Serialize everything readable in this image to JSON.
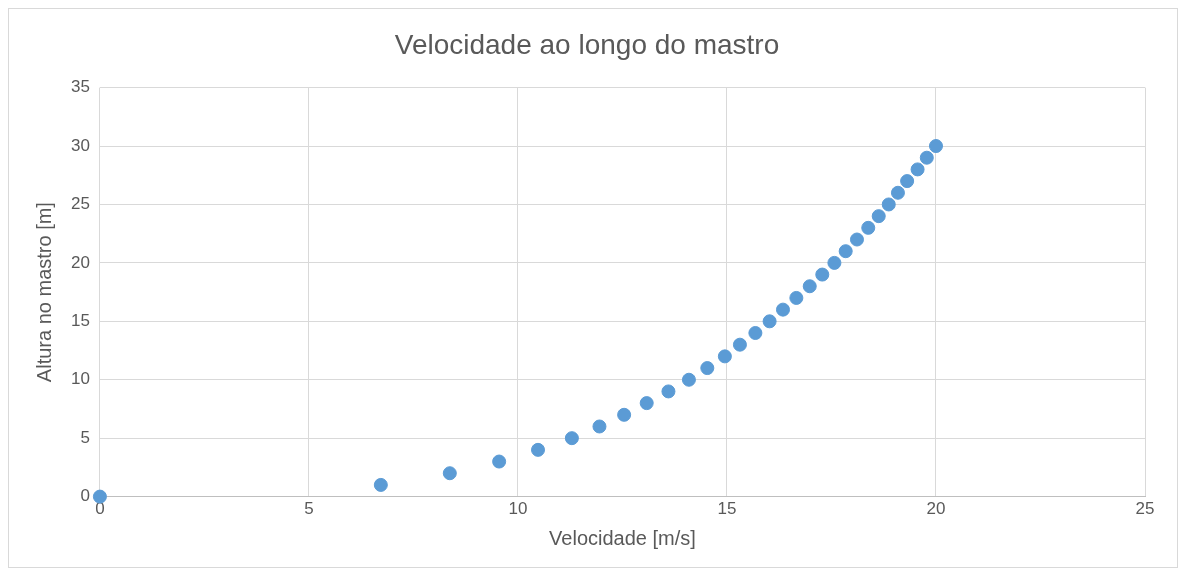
{
  "chart_data": {
    "type": "scatter",
    "title": "Velocidade ao longo do mastro",
    "xlabel": "Velocidade [m/s]",
    "ylabel": "Altura no mastro [m]",
    "x": [
      0,
      6.72,
      8.37,
      9.55,
      10.48,
      11.29,
      11.95,
      12.54,
      13.08,
      13.6,
      14.09,
      14.53,
      14.95,
      15.31,
      15.68,
      16.02,
      16.34,
      16.66,
      16.98,
      17.28,
      17.57,
      17.84,
      18.11,
      18.38,
      18.63,
      18.87,
      19.09,
      19.31,
      19.56,
      19.78,
      20.0
    ],
    "series": [
      {
        "color": "#5b9bd5",
        "values": [
          0,
          1,
          2,
          3,
          4,
          5,
          6,
          7,
          8,
          9,
          10,
          11,
          12,
          13,
          14,
          15,
          16,
          17,
          18,
          19,
          20,
          21,
          22,
          23,
          24,
          25,
          26,
          27,
          28,
          29,
          30
        ]
      }
    ],
    "xlim": [
      0,
      25
    ],
    "xticks": [
      0,
      5,
      10,
      15,
      20,
      25
    ],
    "ylim": [
      0,
      35
    ],
    "yticks": [
      0,
      5,
      10,
      15,
      20,
      25,
      30,
      35
    ],
    "grid": true,
    "legend": false,
    "marker": "circle"
  }
}
